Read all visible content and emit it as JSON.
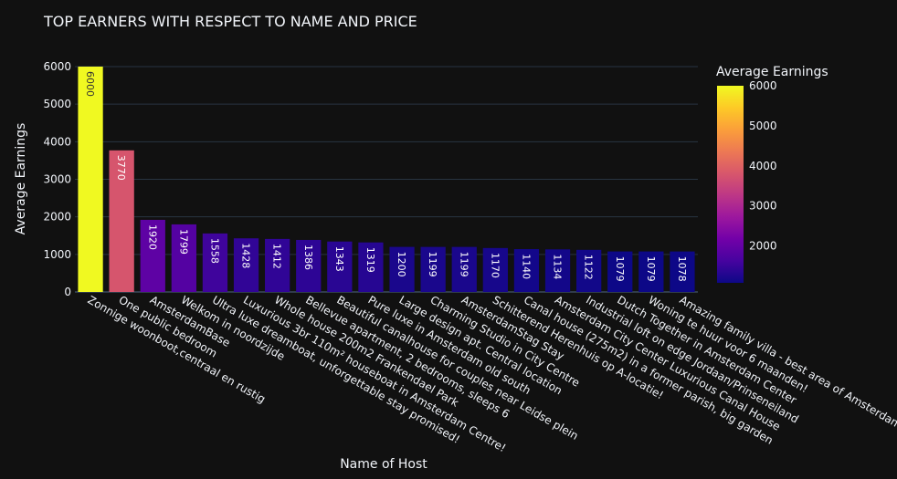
{
  "chart_data": {
    "type": "bar",
    "title": "TOP EARNERS WITH RESPECT TO NAME AND PRICE",
    "xlabel": "Name of Host",
    "ylabel": "Average Earnings",
    "ylim": [
      0,
      6000
    ],
    "yticks": [
      0,
      1000,
      2000,
      3000,
      4000,
      5000,
      6000
    ],
    "categories": [
      "Zonnige woonboot,centraal en rustig",
      "One public bedroom",
      "AmsterdamBase",
      "Welkom in noordzijde",
      "Ultra luxe dreamboat, unforgettable stay promised!",
      "Luxurious 3br 110m² houseboat in Amsterdam Centre!",
      "Whole house 200m2 Frankendael Park",
      "Bellevue apartment, 2 bedrooms, sleeps 6",
      "Beautiful canalhouse for couples near Leidse plein",
      "Pure luxe in Amsterdam old south",
      "Large design apt. Central location",
      "Charming Studio in City Centre",
      "AmsterdamStag Stay",
      "Schitterend Herenhuis op A-locatie!",
      "Canal house (275m2) in a former parish, big garden",
      "Amsterdam City Center Luxurious Canal House",
      "Industrial loft  on edge Jordaan/Prinseneiland",
      "Dutch Together in Amsterdam Center",
      "Woning te huur voor 6 maanden!",
      "Amazing family villa - best area of Amsterdam!"
    ],
    "values": [
      6000,
      3770,
      1920,
      1799,
      1558,
      1428,
      1412,
      1386,
      1343,
      1319,
      1200,
      1199,
      1199,
      1170,
      1140,
      1134,
      1122,
      1079,
      1079,
      1078
    ],
    "colorscale": "Plasma",
    "colorbar": {
      "title": "Average Earnings",
      "range": [
        1078,
        6000
      ],
      "ticks": [
        2000,
        3000,
        4000,
        5000,
        6000
      ]
    },
    "grid": true,
    "legend": "none"
  }
}
